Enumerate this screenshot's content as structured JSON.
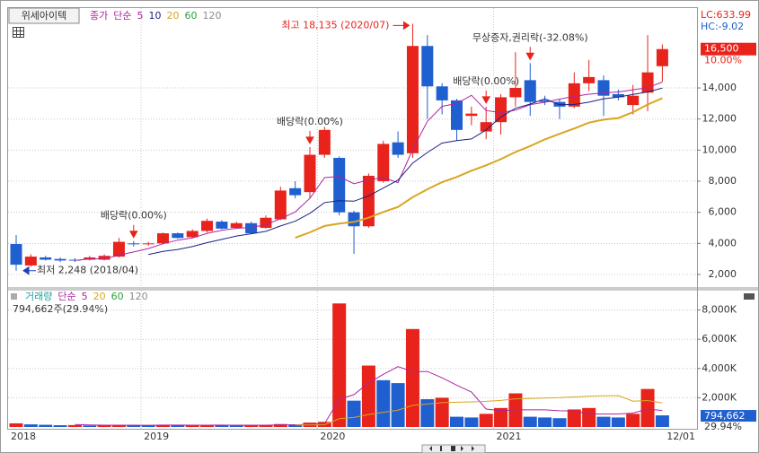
{
  "toolbar": {
    "stock": "위세아이텍"
  },
  "chart_data": [
    {
      "type": "candlestick",
      "legend": {
        "field": "종가",
        "method": "단순"
      },
      "ma": [
        {
          "period": 5,
          "color": "#b0239f"
        },
        {
          "period": 10,
          "color": "#1a237e"
        },
        {
          "period": 20,
          "color": "#d9a520"
        },
        {
          "period": 60,
          "color": "#2e9e3a"
        },
        {
          "period": 120,
          "color": "#8c8c8c"
        }
      ],
      "categories": [
        "2018/04",
        "2018/05",
        "2018/06",
        "2018/07",
        "2018/08",
        "2018/09",
        "2018/10",
        "2018/11",
        "2018/12",
        "2019/01",
        "2019/02",
        "2019/03",
        "2019/04",
        "2019/05",
        "2019/06",
        "2019/07",
        "2019/08",
        "2019/09",
        "2019/10",
        "2019/11",
        "2019/12",
        "2020/01",
        "2020/02",
        "2020/03",
        "2020/04",
        "2020/05",
        "2020/06",
        "2020/07",
        "2020/08",
        "2020/09",
        "2020/10",
        "2020/11",
        "2020/12",
        "2021/01",
        "2021/02",
        "2021/03",
        "2021/04",
        "2021/05",
        "2021/06",
        "2021/07",
        "2021/08",
        "2021/09",
        "2021/10",
        "2021/11",
        "2021/12"
      ],
      "open": [
        3960,
        2580,
        3100,
        3000,
        2950,
        2950,
        2950,
        3150,
        4000,
        3950,
        4000,
        4650,
        4400,
        4800,
        5400,
        5000,
        5300,
        5000,
        5550,
        7550,
        7300,
        9700,
        9500,
        6000,
        5100,
        8000,
        10500,
        9800,
        16700,
        14100,
        13200,
        12200,
        11200,
        11800,
        13400,
        14500,
        13200,
        13100,
        12800,
        14300,
        14500,
        13600,
        12900,
        13700,
        15400
      ],
      "high": [
        4540,
        3300,
        3200,
        3100,
        3050,
        3200,
        3300,
        4350,
        4150,
        4100,
        4700,
        4700,
        4900,
        5600,
        5500,
        5400,
        5400,
        5800,
        7650,
        8000,
        10200,
        11500,
        9600,
        6100,
        8500,
        10600,
        11200,
        18135,
        17400,
        14300,
        13300,
        12800,
        12800,
        13600,
        16300,
        15600,
        13500,
        13300,
        15000,
        15800,
        14800,
        13900,
        14200,
        17400,
        16800
      ],
      "low": [
        2248,
        2500,
        2900,
        2800,
        2800,
        2900,
        2900,
        3100,
        3800,
        3850,
        3950,
        4300,
        4350,
        4700,
        4900,
        4950,
        4600,
        4950,
        5500,
        6900,
        6900,
        9500,
        5800,
        3330,
        5000,
        7900,
        9500,
        9500,
        12000,
        12300,
        10600,
        11600,
        10700,
        11000,
        12800,
        12200,
        12900,
        12000,
        12700,
        13800,
        12200,
        13200,
        12300,
        12500,
        14400
      ],
      "close": [
        2630,
        3150,
        2950,
        2900,
        2900,
        3100,
        3200,
        4100,
        3950,
        4000,
        4650,
        4350,
        4800,
        5450,
        4950,
        5300,
        4650,
        5650,
        7400,
        7100,
        9700,
        11300,
        6000,
        5100,
        8350,
        10400,
        9700,
        16700,
        14100,
        13200,
        11300,
        12350,
        11800,
        13400,
        14000,
        13100,
        13100,
        12800,
        14300,
        14700,
        13500,
        13400,
        13500,
        15000,
        16500
      ],
      "up_color": "#e8231b",
      "down_color": "#1f5fd0",
      "ylim": [
        1192,
        19080
      ],
      "yticks": [
        {
          "value": 2000,
          "label": "2,000"
        },
        {
          "value": 4000,
          "label": "4,000"
        },
        {
          "value": 6000,
          "label": "6,000"
        },
        {
          "value": 8000,
          "label": "8,000"
        },
        {
          "value": 10000,
          "label": "10,000"
        },
        {
          "value": 12000,
          "label": "12,000"
        },
        {
          "value": 14000,
          "label": "14,000"
        }
      ],
      "xticks": [
        {
          "value": "2018/04",
          "label": "2018"
        },
        {
          "value": "2019/01",
          "label": "2019"
        },
        {
          "value": "2020/01",
          "label": "2020"
        },
        {
          "value": "2021/01",
          "label": "2021"
        }
      ],
      "end_label": "12/01",
      "grid": true,
      "high_label": "최고 18,135 (2020/07)",
      "low_label": "최저 2,248 (2018/04)",
      "events": [
        {
          "label": "배당락(0.00%)",
          "category": "2018/12"
        },
        {
          "label": "배당락(0.00%)",
          "category": "2019/12"
        },
        {
          "label": "배당락(0.00%)",
          "category": "2020/12"
        },
        {
          "label": "무상증자,권리락(-32.08%)",
          "category": "2021/03"
        }
      ],
      "lc": "LC:633.99",
      "hc": "HC:-9.02",
      "current": {
        "value": 16500,
        "label": "16,500"
      },
      "change": "10.00%"
    },
    {
      "type": "bar",
      "legend": {
        "field": "거래량",
        "method": "단순"
      },
      "ma": [
        {
          "period": 5,
          "color": "#b0239f"
        },
        {
          "period": 20,
          "color": "#d9a520"
        },
        {
          "period": 60,
          "color": "#2e9e3a"
        },
        {
          "period": 120,
          "color": "#8c8c8c"
        }
      ],
      "values": [
        250,
        180,
        150,
        120,
        130,
        100,
        120,
        150,
        120,
        100,
        150,
        120,
        120,
        130,
        120,
        110,
        120,
        130,
        200,
        180,
        300,
        350,
        8450,
        1800,
        4200,
        3200,
        3000,
        6700,
        1900,
        2000,
        700,
        650,
        900,
        1300,
        2300,
        700,
        650,
        600,
        1200,
        1300,
        700,
        650,
        900,
        2600,
        794.662
      ],
      "value_labels": {
        "44": "794,662"
      },
      "up_color": "#e8231b",
      "down_color": "#1f5fd0",
      "ylim": [
        0,
        9264
      ],
      "yticks": [
        {
          "value": 2000,
          "label": "2,000K"
        },
        {
          "value": 4000,
          "label": "4,000K"
        },
        {
          "value": 6000,
          "label": "6,000K"
        },
        {
          "value": 8000,
          "label": "8,000K"
        }
      ],
      "grid": true,
      "header": "794,662주(29.94%)",
      "ratio": "29.94%"
    }
  ]
}
